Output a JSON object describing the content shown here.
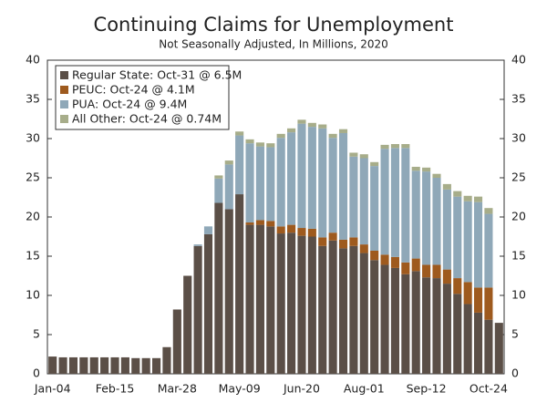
{
  "chart_data": {
    "type": "stacked-bar",
    "title": "Continuing Claims for Unemployment",
    "subtitle": "Not Seasonally Adjusted, In Millions, 2020",
    "categories": [
      "Jan-04",
      null,
      null,
      null,
      null,
      null,
      "Feb-15",
      null,
      null,
      null,
      null,
      null,
      "Mar-28",
      null,
      null,
      null,
      null,
      null,
      "May-09",
      null,
      null,
      null,
      null,
      null,
      "Jun-20",
      null,
      null,
      null,
      null,
      null,
      "Aug-01",
      null,
      null,
      null,
      null,
      null,
      "Sep-12",
      null,
      null,
      null,
      null,
      null,
      "Oct-24",
      null
    ],
    "series": [
      {
        "name": "Regular State: Oct-31 @ 6.5M",
        "color": "#5b4f47",
        "values": [
          2.2,
          2.1,
          2.1,
          2.1,
          2.1,
          2.1,
          2.1,
          2.1,
          2.0,
          2.0,
          2.0,
          3.4,
          8.2,
          12.5,
          16.3,
          17.8,
          21.8,
          21.0,
          22.9,
          19.0,
          19.0,
          18.8,
          17.9,
          18.0,
          17.6,
          17.5,
          16.3,
          17.0,
          16.0,
          16.3,
          15.4,
          14.5,
          13.9,
          13.5,
          12.7,
          13.1,
          12.3,
          12.2,
          11.5,
          10.2,
          8.9,
          7.8,
          6.9,
          6.5
        ]
      },
      {
        "name": "PEUC: Oct-24 @ 4.1M",
        "color": "#9e5a1e",
        "values": [
          null,
          null,
          null,
          null,
          null,
          null,
          null,
          null,
          null,
          null,
          null,
          null,
          null,
          null,
          null,
          null,
          null,
          null,
          null,
          0.3,
          0.6,
          0.7,
          0.9,
          1.0,
          1.0,
          1.0,
          1.1,
          1.0,
          1.1,
          1.1,
          1.1,
          1.2,
          1.3,
          1.4,
          1.5,
          1.6,
          1.6,
          1.7,
          1.8,
          2.0,
          2.8,
          3.2,
          4.1,
          null
        ]
      },
      {
        "name": "PUA: Oct-24 @ 9.4M",
        "color": "#8fa8b8",
        "values": [
          null,
          null,
          null,
          null,
          null,
          null,
          null,
          null,
          null,
          null,
          null,
          null,
          null,
          null,
          0.2,
          1.0,
          3.1,
          5.7,
          7.5,
          10.1,
          9.4,
          9.4,
          11.3,
          11.8,
          13.3,
          13.0,
          13.9,
          12.1,
          13.6,
          10.3,
          11.0,
          10.8,
          13.5,
          13.9,
          14.6,
          11.2,
          11.9,
          11.1,
          10.2,
          10.4,
          10.3,
          10.9,
          9.4,
          null
        ]
      },
      {
        "name": "All Other: Oct-24 @ 0.74M",
        "color": "#a7ad8a",
        "values": [
          null,
          null,
          null,
          null,
          null,
          null,
          null,
          null,
          null,
          null,
          null,
          null,
          null,
          null,
          null,
          null,
          0.4,
          0.5,
          0.5,
          0.5,
          0.5,
          0.5,
          0.5,
          0.5,
          0.5,
          0.5,
          0.5,
          0.5,
          0.5,
          0.5,
          0.5,
          0.5,
          0.5,
          0.5,
          0.5,
          0.5,
          0.5,
          0.5,
          0.7,
          0.7,
          0.7,
          0.7,
          0.74,
          null
        ]
      }
    ],
    "ylim": [
      0,
      40
    ],
    "yticks": [
      0,
      5,
      10,
      15,
      20,
      25,
      30,
      35,
      40
    ],
    "legend": "upper-left",
    "right_axis": true
  }
}
